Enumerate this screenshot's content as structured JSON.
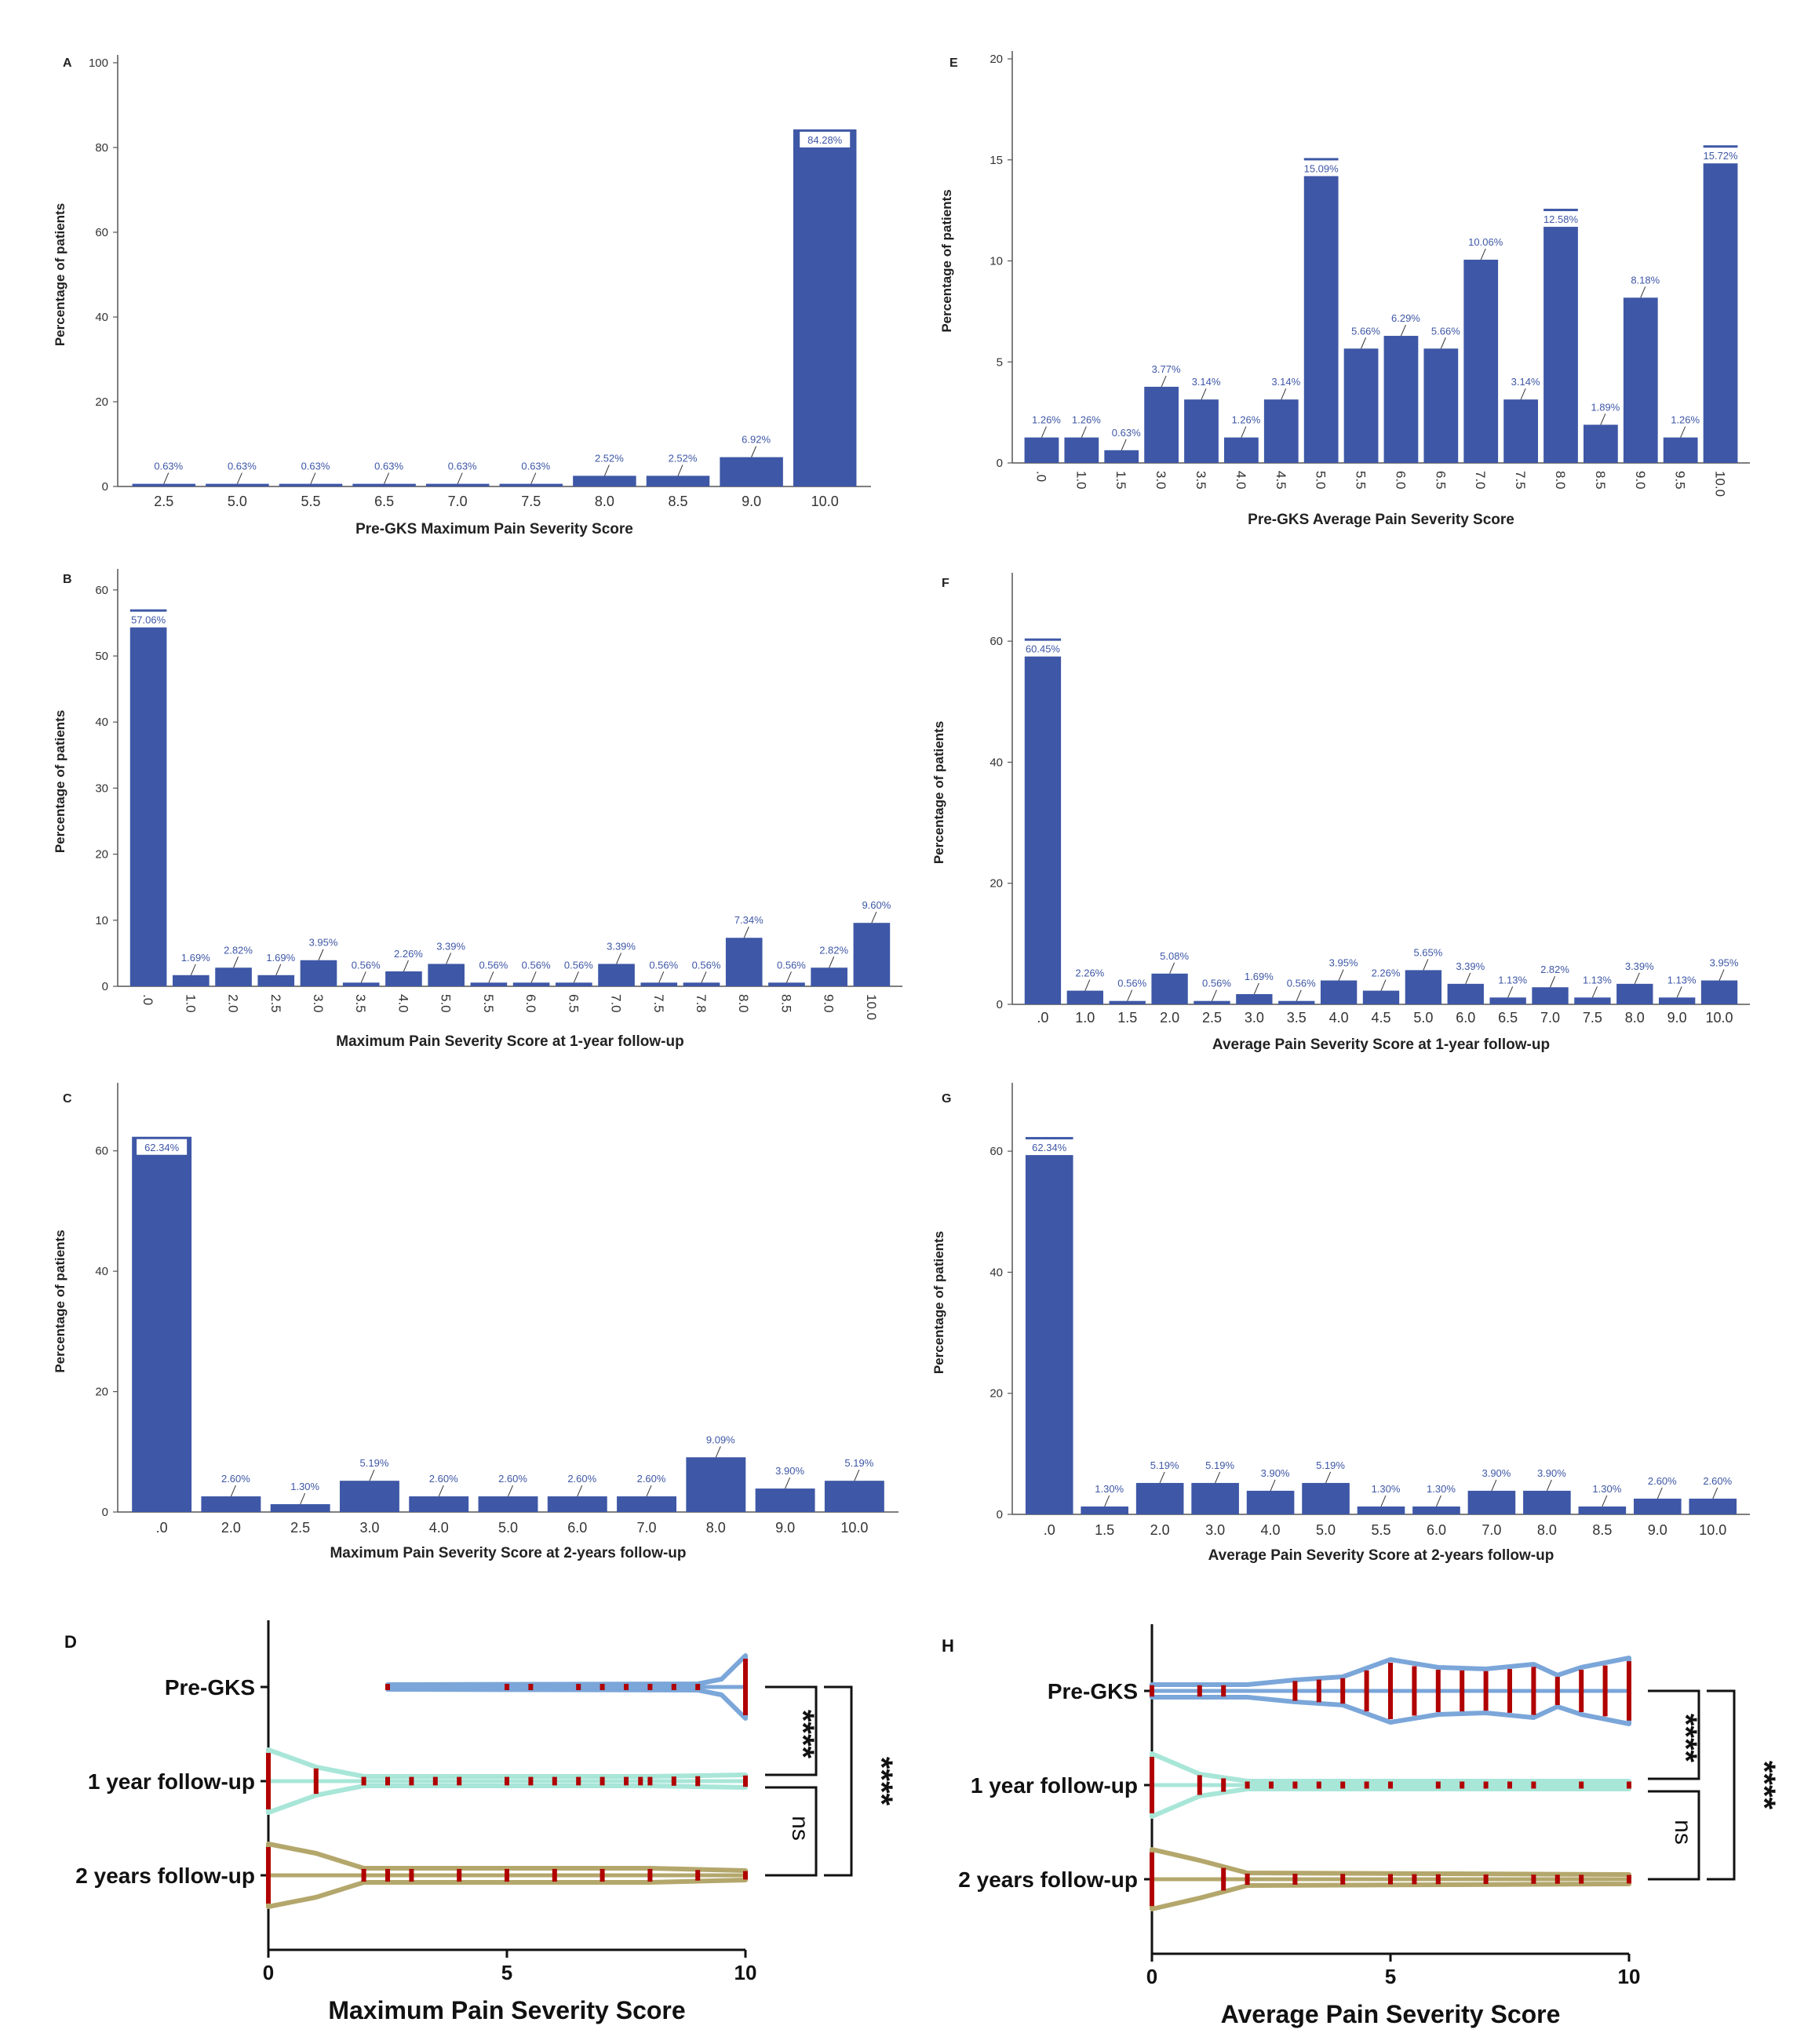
{
  "colors": {
    "bar": "#3e57a6",
    "bar_label": "#3e57a6",
    "axis": "#555555",
    "violin_pre": "#7ba6d9",
    "violin_1yr": "#a8e6d8",
    "violin_2yr": "#b4a76c",
    "dot": "#b00000"
  },
  "chart_data": [
    {
      "panel": "A",
      "type": "bar",
      "title": "",
      "xlabel": "Pre-GKS Maximum Pain Severity Score",
      "ylabel": "Percentage of patients",
      "ylim": [
        0,
        100
      ],
      "yticks": [
        "0",
        "20",
        "40",
        "60",
        "80",
        "100"
      ],
      "x_tick_orientation": "horizontal",
      "categories": [
        "2.5",
        "5.0",
        "5.5",
        "6.5",
        "7.0",
        "7.5",
        "8.0",
        "8.5",
        "9.0",
        "10.0"
      ],
      "values": [
        0.63,
        0.63,
        0.63,
        0.63,
        0.63,
        0.63,
        2.52,
        2.52,
        6.92,
        84.28
      ],
      "labels": [
        "0.63%",
        "0.63%",
        "0.63%",
        "0.63%",
        "0.63%",
        "0.63%",
        "2.52%",
        "2.52%",
        "6.92%",
        "84.28%"
      ]
    },
    {
      "panel": "E",
      "type": "bar",
      "title": "",
      "xlabel": "Pre-GKS Average Pain Severity Score",
      "ylabel": "Percentage of patients",
      "ylim": [
        0,
        20
      ],
      "yticks": [
        "0",
        "5",
        "10",
        "15",
        "20"
      ],
      "x_tick_orientation": "vertical",
      "categories": [
        ".0",
        "1.0",
        "1.5",
        "3.0",
        "3.5",
        "4.0",
        "4.5",
        "5.0",
        "5.5",
        "6.0",
        "6.5",
        "7.0",
        "7.5",
        "8.0",
        "8.5",
        "9.0",
        "9.5",
        "10.0"
      ],
      "values": [
        1.26,
        1.26,
        0.63,
        3.77,
        3.14,
        1.26,
        3.14,
        15.09,
        5.66,
        6.29,
        5.66,
        10.06,
        3.14,
        12.58,
        1.89,
        8.18,
        1.26,
        15.72
      ],
      "labels": [
        "1.26%",
        "1.26%",
        "0.63%",
        "3.77%",
        "3.14%",
        "1.26%",
        "3.14%",
        "15.09%",
        "5.66%",
        "6.29%",
        "5.66%",
        "10.06%",
        "3.14%",
        "12.58%",
        "1.89%",
        "8.18%",
        "1.26%",
        "15.72%"
      ]
    },
    {
      "panel": "B",
      "type": "bar",
      "title": "",
      "xlabel": "Maximum Pain Severity Score at 1-year follow-up",
      "ylabel": "Percentage of patients",
      "ylim": [
        0,
        62
      ],
      "yticks": [
        "0",
        "10",
        "20",
        "30",
        "40",
        "50",
        "60"
      ],
      "x_tick_orientation": "vertical",
      "categories": [
        ".0",
        "1.0",
        "2.0",
        "2.5",
        "3.0",
        "3.5",
        "4.0",
        "5.0",
        "5.5",
        "6.0",
        "6.5",
        "7.0",
        "7.5",
        "7.8",
        "8.0",
        "8.5",
        "9.0",
        "10.0"
      ],
      "values": [
        57.06,
        1.69,
        2.82,
        1.69,
        3.95,
        0.56,
        2.26,
        3.39,
        0.56,
        0.56,
        0.56,
        3.39,
        0.56,
        0.56,
        7.34,
        0.56,
        2.82,
        9.6
      ],
      "labels": [
        "57.06%",
        "1.69%",
        "2.82%",
        "1.69%",
        "3.95%",
        "0.56%",
        "2.26%",
        "3.39%",
        "0.56%",
        "0.56%",
        "0.56%",
        "3.39%",
        "0.56%",
        "0.56%",
        "7.34%",
        "0.56%",
        "2.82%",
        "9.60%"
      ]
    },
    {
      "panel": "F",
      "type": "bar",
      "title": "",
      "xlabel": "Average Pain Severity Score at 1-year follow-up",
      "ylabel": "Percentage of patients",
      "ylim": [
        0,
        70
      ],
      "yticks": [
        "0",
        "20",
        "40",
        "60"
      ],
      "x_tick_orientation": "horizontal",
      "categories": [
        ".0",
        "1.0",
        "1.5",
        "2.0",
        "2.5",
        "3.0",
        "3.5",
        "4.0",
        "4.5",
        "5.0",
        "6.0",
        "6.5",
        "7.0",
        "7.5",
        "8.0",
        "9.0",
        "10.0"
      ],
      "values": [
        60.45,
        2.26,
        0.56,
        5.08,
        0.56,
        1.69,
        0.56,
        3.95,
        2.26,
        5.65,
        3.39,
        1.13,
        2.82,
        1.13,
        3.39,
        1.13,
        3.95
      ],
      "labels": [
        "60.45%",
        "2.26%",
        "0.56%",
        "5.08%",
        "0.56%",
        "1.69%",
        "0.56%",
        "3.95%",
        "2.26%",
        "5.65%",
        "3.39%",
        "1.13%",
        "2.82%",
        "1.13%",
        "3.39%",
        "1.13%",
        "3.95%"
      ]
    },
    {
      "panel": "C",
      "type": "bar",
      "title": "",
      "xlabel": "Maximum Pain Severity Score at 2-years follow-up",
      "ylabel": "Percentage of patients",
      "ylim": [
        0,
        70
      ],
      "yticks": [
        "0",
        "20",
        "40",
        "60"
      ],
      "x_tick_orientation": "horizontal",
      "categories": [
        ".0",
        "2.0",
        "2.5",
        "3.0",
        "4.0",
        "5.0",
        "6.0",
        "7.0",
        "8.0",
        "9.0",
        "10.0"
      ],
      "values": [
        62.34,
        2.6,
        1.3,
        5.19,
        2.6,
        2.6,
        2.6,
        2.6,
        9.09,
        3.9,
        5.19
      ],
      "labels": [
        "62.34%",
        "2.60%",
        "1.30%",
        "5.19%",
        "2.60%",
        "2.60%",
        "2.60%",
        "2.60%",
        "9.09%",
        "3.90%",
        "5.19%"
      ]
    },
    {
      "panel": "G",
      "type": "bar",
      "title": "",
      "xlabel": "Average Pain Severity Score at 2-years follow-up",
      "ylabel": "Percentage of patients",
      "ylim": [
        0,
        70
      ],
      "yticks": [
        "0",
        "20",
        "40",
        "60"
      ],
      "x_tick_orientation": "horizontal",
      "categories": [
        ".0",
        "1.5",
        "2.0",
        "3.0",
        "4.0",
        "5.0",
        "5.5",
        "6.0",
        "7.0",
        "8.0",
        "8.5",
        "9.0",
        "10.0"
      ],
      "values": [
        62.34,
        1.3,
        5.19,
        5.19,
        3.9,
        5.19,
        1.3,
        1.3,
        3.9,
        3.9,
        1.3,
        2.6,
        2.6
      ],
      "labels": [
        "62.34%",
        "1.30%",
        "5.19%",
        "5.19%",
        "3.90%",
        "5.19%",
        "1.30%",
        "1.30%",
        "3.90%",
        "3.90%",
        "1.30%",
        "2.60%",
        "2.60%"
      ]
    },
    {
      "panel": "D",
      "type": "violin",
      "xlabel": "Maximum Pain Severity Score",
      "xlim": [
        0,
        10
      ],
      "xticks": [
        "0",
        "5",
        "10"
      ],
      "series": [
        {
          "name": "Pre-GKS",
          "min": 2.5,
          "max": 10,
          "points": [
            2.5,
            5.0,
            5.5,
            6.5,
            7.0,
            7.5,
            8.0,
            8.5,
            9.0,
            10.0
          ]
        },
        {
          "name": "1 year follow-up",
          "min": 0,
          "max": 10,
          "points": [
            0,
            1.0,
            2.0,
            2.5,
            3.0,
            3.5,
            4.0,
            5.0,
            5.5,
            6.0,
            6.5,
            7.0,
            7.5,
            7.8,
            8.0,
            8.5,
            9.0,
            10.0
          ]
        },
        {
          "name": "2 years follow-up",
          "min": 0,
          "max": 10,
          "points": [
            0,
            2.0,
            2.5,
            3.0,
            4.0,
            5.0,
            6.0,
            7.0,
            8.0,
            9.0,
            10.0
          ]
        }
      ],
      "significance": [
        {
          "pair": [
            "Pre-GKS",
            "1 year follow-up"
          ],
          "label": "****"
        },
        {
          "pair": [
            "Pre-GKS",
            "2 years follow-up"
          ],
          "label": "****"
        },
        {
          "pair": [
            "1 year follow-up",
            "2 years follow-up"
          ],
          "label": "ns"
        }
      ]
    },
    {
      "panel": "H",
      "type": "violin",
      "xlabel": "Average Pain Severity Score",
      "xlim": [
        0,
        10
      ],
      "xticks": [
        "0",
        "5",
        "10"
      ],
      "series": [
        {
          "name": "Pre-GKS",
          "min": 0,
          "max": 10,
          "points": [
            0,
            1.0,
            1.5,
            3.0,
            3.5,
            4.0,
            4.5,
            5.0,
            5.5,
            6.0,
            6.5,
            7.0,
            7.5,
            8.0,
            8.5,
            9.0,
            9.5,
            10.0
          ]
        },
        {
          "name": "1 year follow-up",
          "min": 0,
          "max": 10,
          "points": [
            0,
            1.0,
            1.5,
            2.0,
            2.5,
            3.0,
            3.5,
            4.0,
            4.5,
            5.0,
            6.0,
            6.5,
            7.0,
            7.5,
            8.0,
            9.0,
            10.0
          ]
        },
        {
          "name": "2 years follow-up",
          "min": 0,
          "max": 10,
          "points": [
            0,
            1.5,
            2.0,
            3.0,
            4.0,
            5.0,
            5.5,
            6.0,
            7.0,
            8.0,
            8.5,
            9.0,
            10.0
          ]
        }
      ],
      "significance": [
        {
          "pair": [
            "Pre-GKS",
            "1 year follow-up"
          ],
          "label": "****"
        },
        {
          "pair": [
            "Pre-GKS",
            "2 years follow-up"
          ],
          "label": "****"
        },
        {
          "pair": [
            "1 year follow-up",
            "2 years follow-up"
          ],
          "label": "ns"
        }
      ]
    }
  ]
}
